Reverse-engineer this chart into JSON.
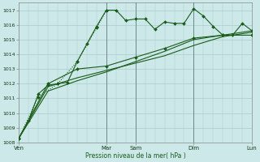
{
  "bg_color": "#cce8e8",
  "grid_color": "#aacccc",
  "line_color": "#1a5c1a",
  "vline_color": "#6a8a8a",
  "xlabel": "Pression niveau de la mer( hPa )",
  "ylim": [
    1008,
    1017.5
  ],
  "yticks": [
    1008,
    1009,
    1010,
    1011,
    1012,
    1013,
    1014,
    1015,
    1016,
    1017
  ],
  "xtick_labels": [
    "Ven",
    "Mar",
    "Sam",
    "Dim",
    "Lun"
  ],
  "xtick_positions": [
    0,
    9,
    12,
    18,
    24
  ],
  "vline_positions": [
    9,
    12,
    18,
    24
  ],
  "xlim": [
    0,
    24
  ],
  "series": [
    {
      "x": [
        0,
        1,
        2,
        3,
        4,
        5,
        6,
        7,
        8,
        9,
        10,
        11,
        12,
        13,
        14,
        15,
        16,
        17,
        18,
        19,
        20,
        21,
        22,
        23,
        24
      ],
      "y": [
        1008.3,
        1009.5,
        1011.3,
        1011.9,
        1012.0,
        1012.1,
        1013.5,
        1014.7,
        1015.9,
        1017.0,
        1017.0,
        1016.3,
        1016.4,
        1016.4,
        1015.7,
        1016.2,
        1016.1,
        1016.1,
        1017.1,
        1016.6,
        1015.9,
        1015.3,
        1015.3,
        1016.1,
        1015.6
      ],
      "marker": "D",
      "lw": 0.8,
      "ms": 2.0,
      "dotted": false
    },
    {
      "x": [
        0,
        2,
        4,
        6,
        8,
        9
      ],
      "y": [
        1008.3,
        1011.1,
        1012.0,
        1013.5,
        1015.8,
        1017.0
      ],
      "marker": "D",
      "lw": 0.8,
      "ms": 2.0,
      "dotted": true
    },
    {
      "x": [
        0,
        3,
        6,
        9,
        12,
        15,
        18,
        21,
        24
      ],
      "y": [
        1008.3,
        1012.0,
        1013.0,
        1013.2,
        1013.8,
        1014.4,
        1015.1,
        1015.3,
        1015.3
      ],
      "marker": "D",
      "lw": 0.8,
      "ms": 2.0,
      "dotted": false
    },
    {
      "x": [
        0,
        3,
        6,
        9,
        12,
        15,
        18,
        21,
        24
      ],
      "y": [
        1008.3,
        1011.8,
        1012.4,
        1012.9,
        1013.4,
        1013.9,
        1014.6,
        1015.2,
        1015.5
      ],
      "marker": null,
      "lw": 0.8,
      "ms": 0,
      "dotted": false
    },
    {
      "x": [
        0,
        3,
        6,
        9,
        12,
        15,
        18,
        21,
        24
      ],
      "y": [
        1008.3,
        1011.5,
        1012.2,
        1012.8,
        1013.5,
        1014.2,
        1015.0,
        1015.3,
        1015.6
      ],
      "marker": null,
      "lw": 0.8,
      "ms": 0,
      "dotted": false
    }
  ]
}
